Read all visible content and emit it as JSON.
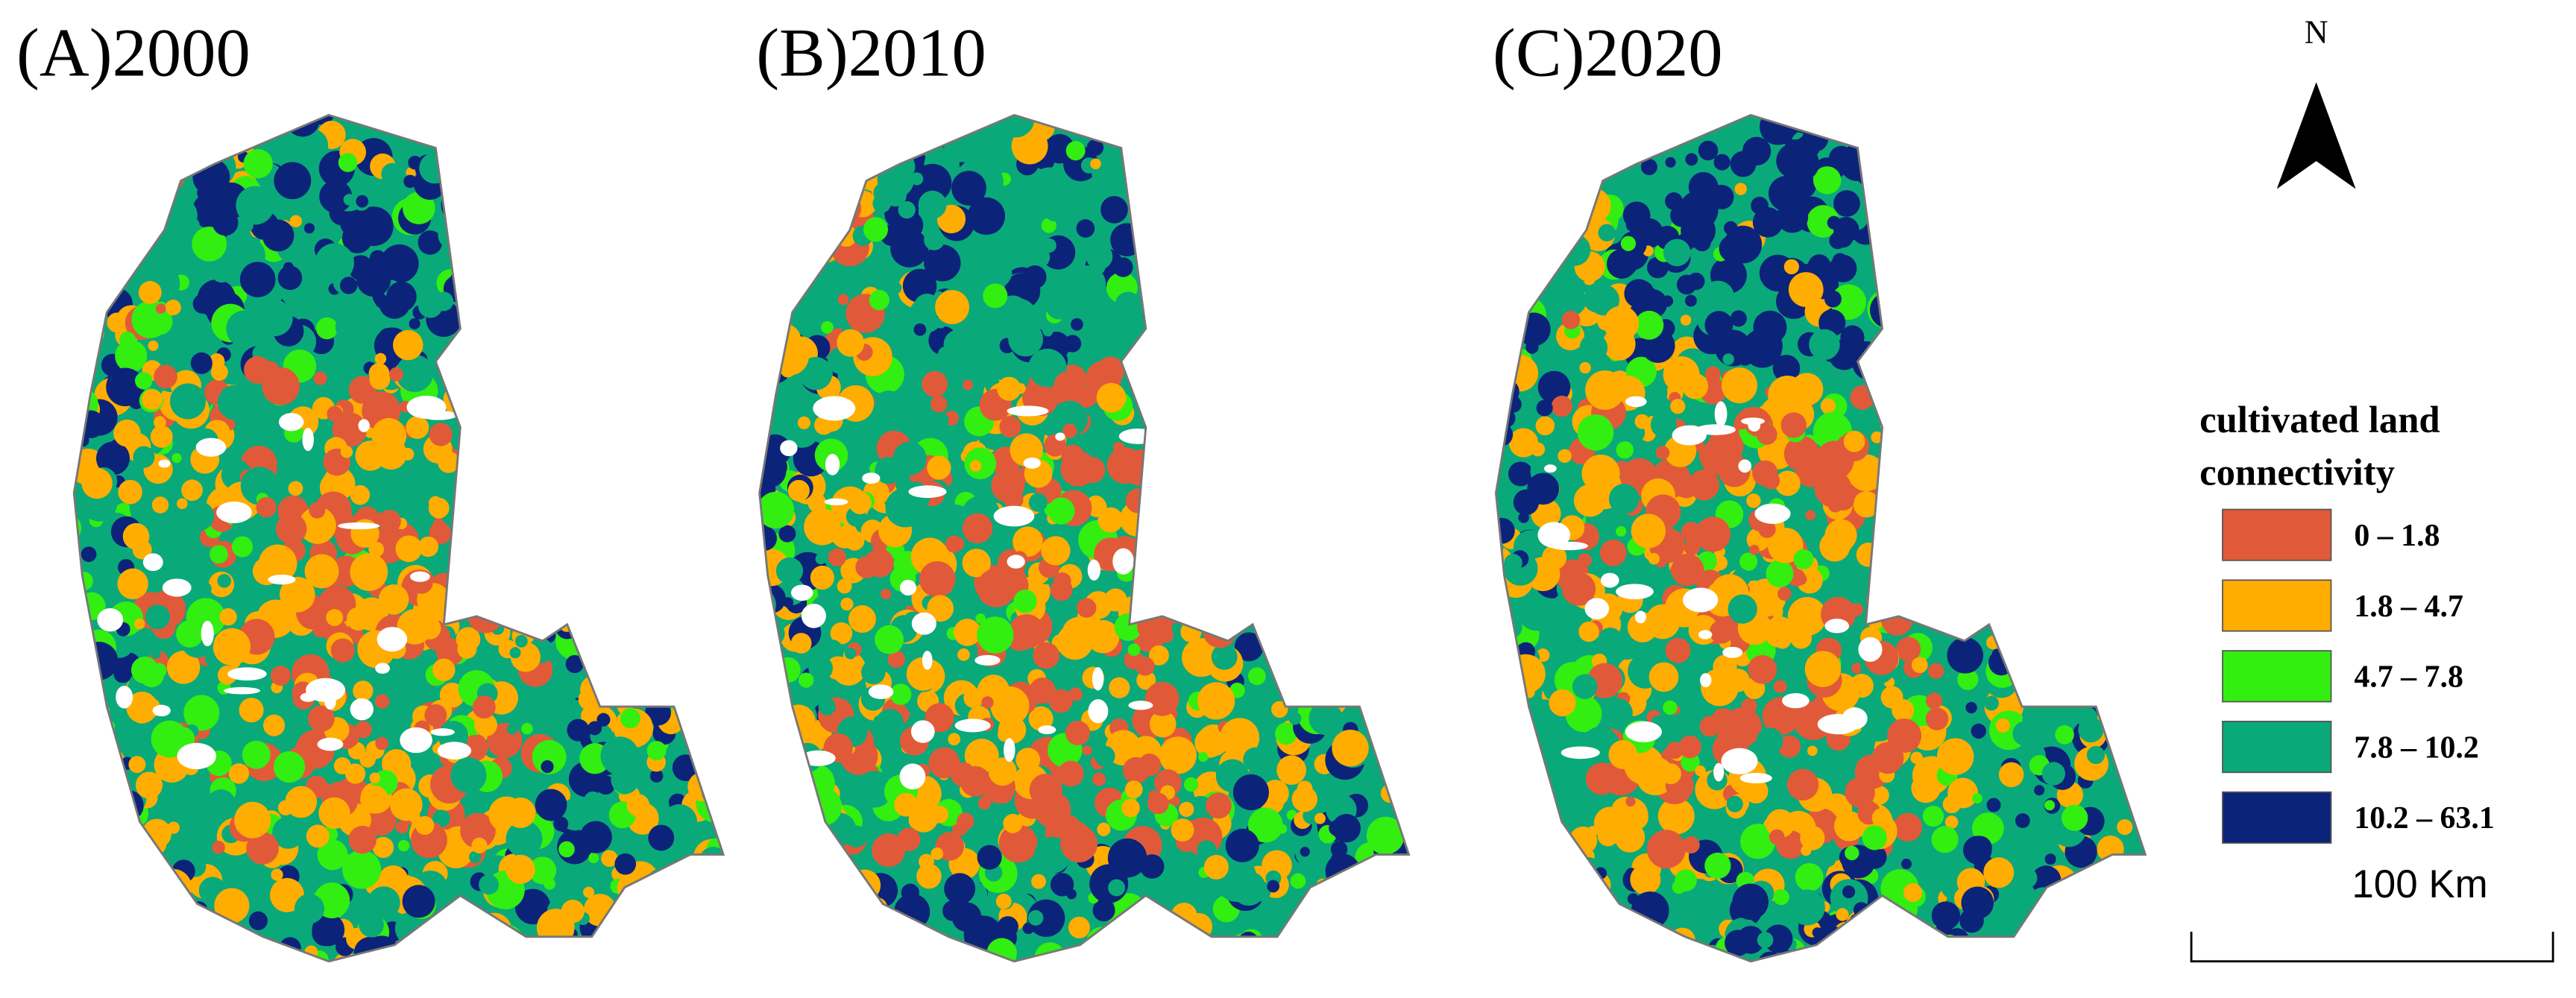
{
  "panels": [
    {
      "label": "(A)2000"
    },
    {
      "label": "(B)2010"
    },
    {
      "label": "(C)2020"
    }
  ],
  "north": {
    "label": "N"
  },
  "legend": {
    "title_lines": [
      "cultivated land",
      "connectivity"
    ],
    "items": [
      {
        "label": "0 – 1.8",
        "color": "#e05a3a"
      },
      {
        "label": "1.8 – 4.7",
        "color": "#ffad00"
      },
      {
        "label": "4.7 – 7.8",
        "color": "#33ee11"
      },
      {
        "label": "7.8 – 10.2",
        "color": "#0aa97a"
      },
      {
        "label": "10.2 – 63.1",
        "color": "#0c237a"
      }
    ]
  },
  "scale_bar": {
    "label": "100 Km"
  }
}
